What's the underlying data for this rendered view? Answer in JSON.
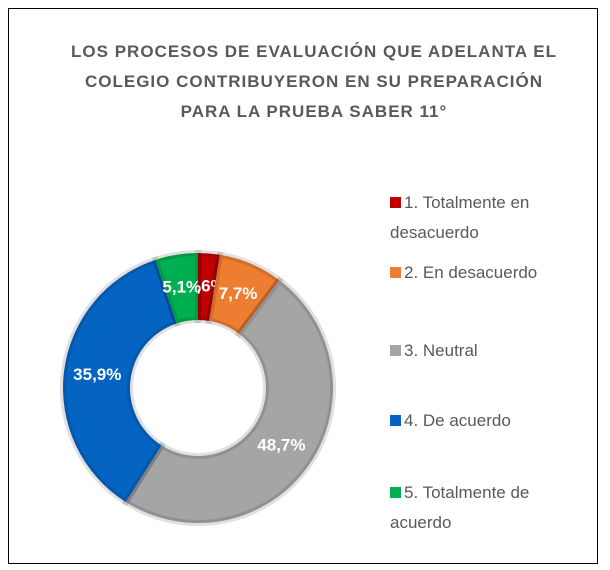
{
  "chart_data": {
    "type": "donut",
    "title": "LOS PROCESOS DE EVALUACIÓN QUE ADELANTA EL COLEGIO CONTRIBUYERON EN SU PREPARACIÓN PARA LA PRUEBA SABER 11°",
    "categories": [
      "1. Totalmente en desacuerdo",
      "2. En desacuerdo",
      "3. Neutral",
      "4. De acuerdo",
      "5. Totalmente de acuerdo"
    ],
    "values": [
      2.6,
      7.7,
      48.7,
      35.9,
      5.1
    ],
    "value_labels": [
      "2,6%",
      "7,7%",
      "48,7%",
      "35,9%",
      "5,1%"
    ],
    "colors": [
      "#c00000",
      "#ed7d31",
      "#a5a5a5",
      "#0563c1",
      "#00b050"
    ],
    "legend": "right"
  }
}
